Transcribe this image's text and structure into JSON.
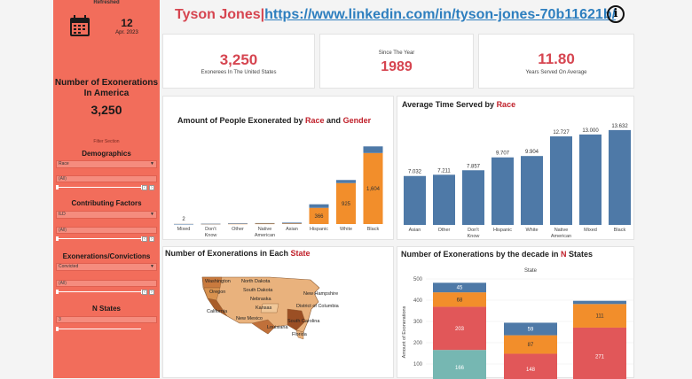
{
  "sidebar": {
    "refreshed_label": "Refreshed",
    "date_day": "12",
    "date_month": "Apr. 2023",
    "title": "Number of Exonerations In America",
    "count": "3,250",
    "filter_section": "Filter Section",
    "demographics_label": "Demographics",
    "demographics_value": "Race",
    "demographics_all": "(All)",
    "factors_label": "Contributing Factors",
    "factors_value": "ILD",
    "factors_all": "(All)",
    "exon_label": "Exonerations/Convictions",
    "exon_value": "Convicted",
    "exon_all": "(All)",
    "nstates_label": "N States",
    "nstates_value": "3"
  },
  "header": {
    "name": "Tyson Jones",
    "separator": "|",
    "link": "https://www.linkedin.com/in/tyson-jones-70b11621b/"
  },
  "kpis": [
    {
      "value": "3,250",
      "label": "Exonerees In The United States",
      "color": "#d64550"
    },
    {
      "value": "1989",
      "label": "Since The Year",
      "color": "#d64550"
    },
    {
      "value": "11.80",
      "label": "Years Served On Average",
      "color": "#d64550"
    }
  ],
  "panels": {
    "gender_title_a": "Amount of People Exonerated by ",
    "gender_title_race": "Race",
    "gender_title_b": " and ",
    "gender_title_gender": "Gender",
    "time_title_a": "Average Time Served by ",
    "time_title_race": "Race",
    "map_title_a": "Number of Exonerations in Each ",
    "map_title_state": "State",
    "decade_title_a": "Number of Exonerations by the decade in ",
    "decade_title_n": "N",
    "decade_title_b": " States"
  },
  "chart_data": [
    {
      "type": "bar",
      "categories": [
        "Mixed",
        "Don't Know",
        "Other",
        "Native American",
        "Asian",
        "Hispanic",
        "White",
        "Black"
      ],
      "series": [
        {
          "values": [
            0,
            2,
            8,
            12,
            20,
            80,
            70,
            150
          ],
          "color": "#4e79a7"
        },
        {
          "values": [
            2,
            5,
            8,
            10,
            12,
            366,
            925,
            1604
          ],
          "color": "#f28e2b"
        }
      ],
      "data_labels": [
        "2",
        "",
        "",
        "",
        "",
        "366",
        "925",
        "1,604"
      ],
      "title": "Amount of People Exonerated by Race and Gender"
    },
    {
      "type": "bar",
      "categories": [
        "Asian",
        "Other",
        "Don't Know",
        "Hispanic",
        "White",
        "Native American",
        "Mixed",
        "Black"
      ],
      "values": [
        7.032,
        7.211,
        7.857,
        9.707,
        9.904,
        12.727,
        13.0,
        13.632
      ],
      "data_labels": [
        "7.032",
        "7.211",
        "7.857",
        "9.707",
        "9.904",
        "12.727",
        "13.000",
        "13.632"
      ],
      "title": "Average Time Served by Race",
      "color": "#4e79a7"
    },
    {
      "type": "bar",
      "stacked": true,
      "title": "Number of Exonerations by the decade in N States",
      "subtitle": "State",
      "ylabel": "Amount of Exonerations",
      "yticks": [
        0,
        100,
        200,
        300,
        400,
        500
      ],
      "ylim": [
        0,
        500
      ],
      "states": [
        {
          "segments": [
            166,
            203,
            68,
            45
          ]
        },
        {
          "segments": [
            0,
            148,
            87,
            59
          ]
        },
        {
          "segments": [
            0,
            271,
            111,
            15
          ]
        }
      ],
      "segment_colors": [
        "#76b7b2",
        "#e15759",
        "#f28e2b",
        "#4e79a7"
      ]
    }
  ],
  "map": {
    "labels": [
      "Washington",
      "North Dakota",
      "Oregon",
      "South Dakota",
      "New Hampshire",
      "Nebraska",
      "District of Columbia",
      "California",
      "Kansas",
      "South Carolina",
      "New Mexico",
      "Louisiana",
      "Florida"
    ]
  }
}
